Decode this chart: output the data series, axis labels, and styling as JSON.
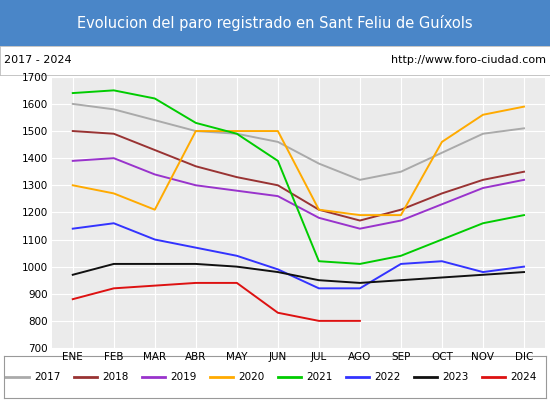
{
  "title": "Evolucion del paro registrado en Sant Feliu de Guíxols",
  "subtitle_left": "2017 - 2024",
  "subtitle_right": "http://www.foro-ciudad.com",
  "title_bg_color": "#4a86c8",
  "title_text_color": "#ffffff",
  "plot_bg_color": "#ebebeb",
  "months": [
    "ENE",
    "FEB",
    "MAR",
    "ABR",
    "MAY",
    "JUN",
    "JUL",
    "AGO",
    "SEP",
    "OCT",
    "NOV",
    "DIC"
  ],
  "ylim": [
    700,
    1700
  ],
  "yticks": [
    700,
    800,
    900,
    1000,
    1100,
    1200,
    1300,
    1400,
    1500,
    1600,
    1700
  ],
  "series": {
    "2017": {
      "color": "#aaaaaa",
      "data": [
        1600,
        1580,
        1540,
        1500,
        1490,
        1460,
        1380,
        1320,
        1350,
        1420,
        1490,
        1510
      ]
    },
    "2018": {
      "color": "#993333",
      "data": [
        1500,
        1490,
        1430,
        1370,
        1330,
        1300,
        1210,
        1170,
        1210,
        1270,
        1320,
        1350
      ]
    },
    "2019": {
      "color": "#9933cc",
      "data": [
        1390,
        1400,
        1340,
        1300,
        1280,
        1260,
        1180,
        1140,
        1170,
        1230,
        1290,
        1320
      ]
    },
    "2020": {
      "color": "#ffaa00",
      "data": [
        1300,
        1270,
        1210,
        1500,
        1500,
        1500,
        1210,
        1190,
        1190,
        1460,
        1560,
        1590
      ]
    },
    "2021": {
      "color": "#00cc00",
      "data": [
        1640,
        1650,
        1620,
        1530,
        1490,
        1390,
        1020,
        1010,
        1040,
        1100,
        1160,
        1190
      ]
    },
    "2022": {
      "color": "#3333ff",
      "data": [
        1140,
        1160,
        1100,
        1070,
        1040,
        990,
        920,
        920,
        1010,
        1020,
        980,
        1000
      ]
    },
    "2023": {
      "color": "#111111",
      "data": [
        970,
        1010,
        1010,
        1010,
        1000,
        980,
        950,
        940,
        950,
        960,
        970,
        980
      ]
    },
    "2024": {
      "color": "#dd1111",
      "data": [
        880,
        920,
        930,
        940,
        940,
        830,
        800,
        800,
        null,
        null,
        null,
        null
      ]
    }
  },
  "legend_order": [
    "2017",
    "2018",
    "2019",
    "2020",
    "2021",
    "2022",
    "2023",
    "2024"
  ]
}
